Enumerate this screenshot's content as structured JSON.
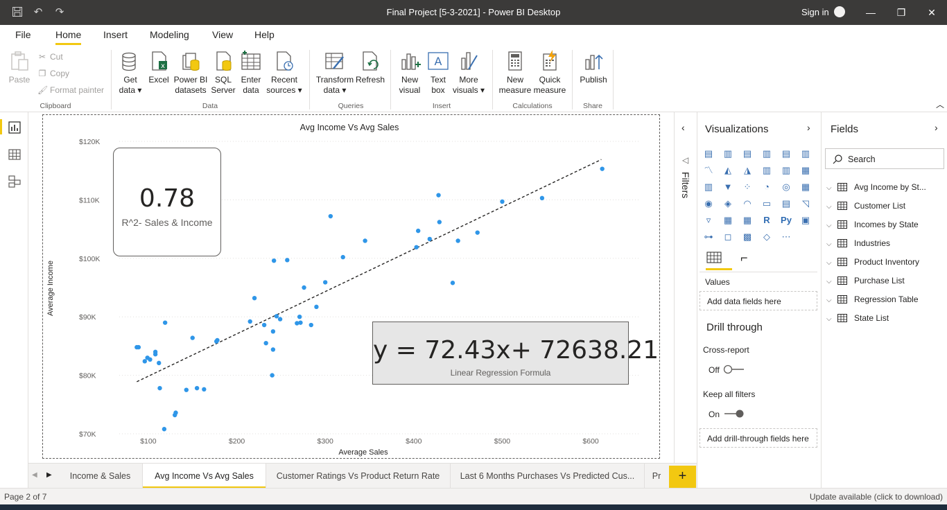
{
  "window": {
    "title": "Final Project [5-3-2021] - Power BI Desktop",
    "sign_in": "Sign in",
    "minimize": "—",
    "restore": "❐",
    "close": "✕"
  },
  "ribbon_tabs": [
    "File",
    "Home",
    "Insert",
    "Modeling",
    "View",
    "Help"
  ],
  "clipboard": {
    "paste": "Paste",
    "cut": "Cut",
    "copy": "Copy",
    "format_painter": "Format painter",
    "group": "Clipboard"
  },
  "data_group": {
    "get_data": [
      "Get",
      "data"
    ],
    "excel": "Excel",
    "pbi_datasets": [
      "Power BI",
      "datasets"
    ],
    "sql_server": [
      "SQL",
      "Server"
    ],
    "enter_data": [
      "Enter",
      "data"
    ],
    "recent_sources": [
      "Recent",
      "sources"
    ],
    "group": "Data"
  },
  "queries_group": {
    "transform": [
      "Transform",
      "data"
    ],
    "refresh": "Refresh",
    "group": "Queries"
  },
  "insert_group": {
    "new_visual": [
      "New",
      "visual"
    ],
    "text_box": [
      "Text",
      "box"
    ],
    "more_visuals": [
      "More",
      "visuals"
    ],
    "group": "Insert"
  },
  "calc_group": {
    "new_measure": [
      "New",
      "measure"
    ],
    "quick_measure": [
      "Quick",
      "measure"
    ],
    "group": "Calculations"
  },
  "share_group": {
    "publish": "Publish",
    "group": "Share"
  },
  "colors": {
    "accent": "#f2c811",
    "title_bar": "#3b3a39",
    "point": "#2f96e8"
  },
  "card": {
    "value": "0.78",
    "label": "R^2- Sales & Income"
  },
  "formula_card": {
    "value": "y = 72.43x+ 72638.21",
    "label": "Linear Regression Formula"
  },
  "chart_data": {
    "type": "scatter",
    "title": "Avg Income Vs Avg Sales",
    "xlabel": "Average Sales",
    "ylabel": "Average Income",
    "xlim": [
      75,
      625
    ],
    "ylim": [
      70000,
      120000
    ],
    "x_ticks": [
      100,
      200,
      300,
      400,
      500,
      600
    ],
    "x_tick_labels": [
      "$100",
      "$200",
      "$300",
      "$400",
      "$500",
      "$600"
    ],
    "y_ticks": [
      70000,
      80000,
      90000,
      100000,
      110000,
      120000
    ],
    "y_tick_labels": [
      "$70K",
      "$80K",
      "$90K",
      "$100K",
      "$110K",
      "$120K"
    ],
    "grid": true,
    "trendline": {
      "x": [
        87,
        612
      ],
      "y": [
        78900,
        116900
      ]
    },
    "points": [
      [
        87,
        84800
      ],
      [
        89,
        84800
      ],
      [
        96,
        82400
      ],
      [
        99,
        83000
      ],
      [
        102,
        82700
      ],
      [
        108,
        83600
      ],
      [
        108,
        84000
      ],
      [
        112,
        82100
      ],
      [
        113,
        77800
      ],
      [
        118,
        70800
      ],
      [
        119,
        89000
      ],
      [
        130,
        73200
      ],
      [
        131,
        73600
      ],
      [
        143,
        77500
      ],
      [
        150,
        86400
      ],
      [
        155,
        77800
      ],
      [
        163,
        77600
      ],
      [
        177,
        85800
      ],
      [
        178,
        86000
      ],
      [
        215,
        89200
      ],
      [
        220,
        93200
      ],
      [
        231,
        88600
      ],
      [
        233,
        85500
      ],
      [
        240,
        80000
      ],
      [
        241,
        84400
      ],
      [
        241,
        87500
      ],
      [
        242,
        99600
      ],
      [
        245,
        90100
      ],
      [
        249,
        89600
      ],
      [
        257,
        99700
      ],
      [
        268,
        88900
      ],
      [
        271,
        90000
      ],
      [
        272,
        89000
      ],
      [
        276,
        95000
      ],
      [
        284,
        88600
      ],
      [
        290,
        91700
      ],
      [
        300,
        95900
      ],
      [
        306,
        107200
      ],
      [
        320,
        100200
      ],
      [
        345,
        103000
      ],
      [
        403,
        101900
      ],
      [
        405,
        104700
      ],
      [
        418,
        103300
      ],
      [
        428,
        110800
      ],
      [
        429,
        106200
      ],
      [
        444,
        95800
      ],
      [
        450,
        103000
      ],
      [
        472,
        104400
      ],
      [
        500,
        109700
      ],
      [
        545,
        110300
      ],
      [
        613,
        115300
      ]
    ]
  },
  "filters_label": "Filters",
  "visualizations": {
    "title": "Visualizations",
    "icons": [
      "stacked-bar-icon",
      "stacked-column-icon",
      "clustered-bar-icon",
      "clustered-column-icon",
      "100-bar-icon",
      "100-column-icon",
      "line-chart-icon",
      "area-chart-icon",
      "stacked-area-icon",
      "line-column-icon",
      "line-clustered-icon",
      "ribbon-chart-icon",
      "waterfall-icon",
      "funnel-icon",
      "scatter-icon",
      "pie-icon",
      "donut-icon",
      "treemap-icon",
      "map-icon",
      "filled-map-icon",
      "gauge-icon",
      "card-icon",
      "multirow-card-icon",
      "kpi-icon",
      "slicer-icon",
      "table-icon",
      "matrix-icon",
      "r-visual-icon",
      "python-visual-icon",
      "key-influencers-icon",
      "decomposition-tree-icon",
      "qa-icon",
      "smart-narrative-icon",
      "paginated-icon",
      "more-icon"
    ],
    "icon_glyphs": [
      "▤",
      "▥",
      "▤",
      "▥",
      "▤",
      "▥",
      "〽",
      "◭",
      "◮",
      "▥",
      "▥",
      "▦",
      "▥",
      "▼",
      "⁘",
      "◔",
      "◎",
      "▦",
      "◉",
      "◈",
      "◠",
      "▭",
      "▤",
      "◹",
      "▿",
      "▦",
      "▦",
      "R",
      "Py",
      "▣",
      "⊶",
      "◻",
      "▩",
      "◇",
      "⋯"
    ],
    "values_label": "Values",
    "values_placeholder": "Add data fields here",
    "drill_through": "Drill through",
    "cross_report": "Cross-report",
    "cross_report_state": "Off",
    "keep_filters": "Keep all filters",
    "keep_filters_state": "On",
    "drill_placeholder": "Add drill-through fields here"
  },
  "fields": {
    "title": "Fields",
    "search_placeholder": "Search",
    "tables": [
      "Avg Income by St...",
      "Customer List",
      "Incomes by State",
      "Industries",
      "Product Inventory",
      "Purchase List",
      "Regression Table",
      "State List"
    ]
  },
  "pages": [
    "Income & Sales",
    "Avg Income Vs Avg Sales",
    "Customer Ratings Vs Product Return Rate",
    "Last 6 Months Purchases Vs Predicted Cus...",
    "Pr"
  ],
  "add_page": "+",
  "status": {
    "page": "Page 2 of 7",
    "update": "Update available (click to download)"
  }
}
